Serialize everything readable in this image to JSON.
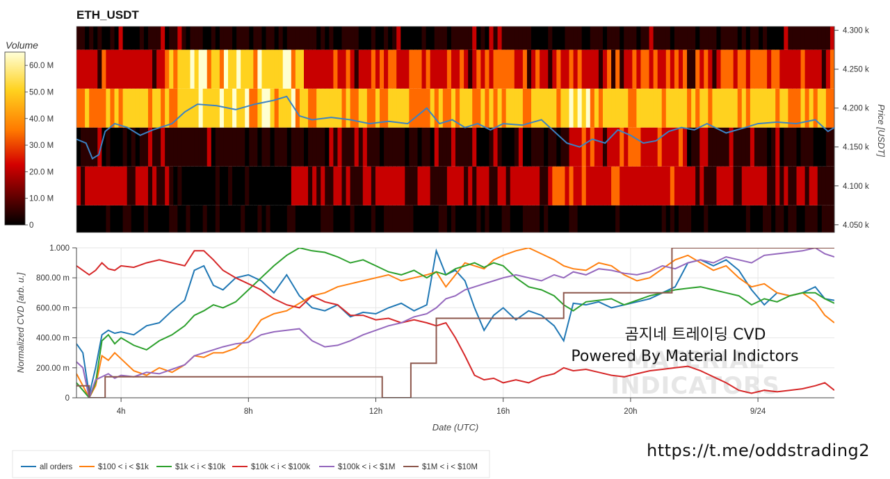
{
  "title": "ETH_USDT",
  "heatmap": {
    "colorbar": {
      "title": "Volume",
      "ticks": [
        "60.0 M",
        "50.0 M",
        "40.0 M",
        "30.0 M",
        "20.0 M",
        "10.0 M",
        "0"
      ],
      "range": [
        0,
        65
      ]
    },
    "y_axis": {
      "label": "Price [USDT]",
      "ticks": [
        "4.300 k",
        "4.250 k",
        "4.200 k",
        "4.150 k",
        "4.100 k",
        "4.050 k"
      ],
      "range": [
        4.04,
        4.305
      ]
    },
    "band_colors": [
      "#000000",
      "#2b0000",
      "#c80000",
      "#ff6a00",
      "#ffd21f",
      "#ffffd0"
    ]
  },
  "cvd": {
    "y_axis": {
      "label": "Normalized CVD [arb. u.]",
      "ticks": [
        "1.000",
        "800.00 m",
        "600.00 m",
        "400.00 m",
        "200.00 m",
        "0"
      ],
      "range": [
        0,
        1
      ]
    },
    "x_axis": {
      "label": "Date (UTC)",
      "ticks": [
        "4h",
        "8h",
        "12h",
        "16h",
        "20h",
        "9/24"
      ],
      "range_hours": [
        2.6,
        26.4
      ]
    }
  },
  "watermark": [
    "MATERIAL",
    "INDICATORS"
  ],
  "annotation": {
    "line1": "곰지네 트레이딩 CVD",
    "line2": "Powered By Material Indictors"
  },
  "link": "https://t.me/oddstrading2",
  "legend": [
    {
      "name": "all orders",
      "color": "#1f77b4"
    },
    {
      "name": "$100 < i < $1k",
      "color": "#ff7f0e"
    },
    {
      "name": "$1k < i < $10k",
      "color": "#2ca02c"
    },
    {
      "name": "$10k < i < $100k",
      "color": "#d62728"
    },
    {
      "name": "$100k < i < $1M",
      "color": "#9467bd"
    },
    {
      "name": "$1M < i < $10M",
      "color": "#8c564b"
    }
  ],
  "chart_data": [
    {
      "type": "heatmap",
      "title": "ETH_USDT",
      "ylabel": "Price [USDT]",
      "ylim": [
        4.04,
        4.305
      ],
      "price_bands": [
        4.05,
        4.1,
        4.15,
        4.2,
        4.25,
        4.3
      ],
      "x_range_hours": [
        2.6,
        26.4
      ],
      "price_line": {
        "x": [
          2.6,
          2.9,
          3.1,
          3.3,
          3.5,
          3.8,
          4.2,
          4.6,
          5.0,
          5.6,
          6.0,
          6.4,
          7.0,
          7.6,
          8.2,
          8.8,
          9.2,
          9.6,
          10.0,
          10.6,
          11.2,
          11.8,
          12.4,
          13.0,
          13.6,
          14.0,
          14.4,
          14.8,
          15.2,
          15.6,
          16.0,
          16.6,
          17.2,
          17.6,
          18.0,
          18.4,
          18.8,
          19.2,
          19.6,
          20.0,
          20.4,
          20.8,
          21.2,
          21.6,
          22.0,
          22.4,
          23.0,
          23.6,
          24.0,
          24.6,
          25.2,
          25.8,
          26.2,
          26.4
        ],
        "y": [
          4.16,
          4.155,
          4.135,
          4.14,
          4.17,
          4.18,
          4.175,
          4.165,
          4.172,
          4.18,
          4.195,
          4.205,
          4.203,
          4.198,
          4.205,
          4.21,
          4.215,
          4.19,
          4.185,
          4.188,
          4.185,
          4.18,
          4.183,
          4.18,
          4.2,
          4.18,
          4.185,
          4.175,
          4.18,
          4.172,
          4.18,
          4.178,
          4.185,
          4.17,
          4.155,
          4.15,
          4.16,
          4.155,
          4.172,
          4.165,
          4.155,
          4.158,
          4.17,
          4.175,
          4.172,
          4.18,
          4.168,
          4.175,
          4.18,
          4.182,
          4.18,
          4.185,
          4.17,
          4.175
        ]
      }
    },
    {
      "type": "line",
      "xlabel": "Date (UTC)",
      "ylabel": "Normalized CVD [arb. u.]",
      "ylim": [
        0,
        1
      ],
      "x": [
        2.6,
        2.8,
        3.0,
        3.2,
        3.4,
        3.6,
        3.8,
        4.0,
        4.4,
        4.8,
        5.2,
        5.6,
        6.0,
        6.3,
        6.6,
        6.9,
        7.2,
        7.6,
        8.0,
        8.4,
        8.8,
        9.2,
        9.6,
        10.0,
        10.4,
        10.8,
        11.2,
        11.6,
        12.0,
        12.4,
        12.8,
        13.2,
        13.6,
        13.9,
        14.2,
        14.5,
        14.8,
        15.1,
        15.4,
        15.7,
        16.0,
        16.4,
        16.8,
        17.2,
        17.6,
        17.9,
        18.2,
        18.6,
        19.0,
        19.4,
        19.8,
        20.2,
        20.6,
        21.0,
        21.4,
        21.8,
        22.2,
        22.6,
        23.0,
        23.4,
        23.8,
        24.2,
        24.6,
        25.0,
        25.4,
        25.8,
        26.1,
        26.4
      ],
      "series": [
        {
          "name": "all orders",
          "values": [
            0.36,
            0.3,
            0.02,
            0.2,
            0.42,
            0.45,
            0.43,
            0.44,
            0.42,
            0.48,
            0.5,
            0.58,
            0.65,
            0.85,
            0.88,
            0.75,
            0.72,
            0.8,
            0.82,
            0.78,
            0.7,
            0.82,
            0.68,
            0.6,
            0.58,
            0.62,
            0.54,
            0.57,
            0.56,
            0.6,
            0.63,
            0.58,
            0.62,
            0.98,
            0.82,
            0.85,
            0.78,
            0.6,
            0.45,
            0.55,
            0.6,
            0.52,
            0.58,
            0.55,
            0.48,
            0.38,
            0.63,
            0.62,
            0.64,
            0.6,
            0.62,
            0.64,
            0.66,
            0.7,
            0.74,
            0.9,
            0.92,
            0.88,
            0.92,
            0.85,
            0.72,
            0.62,
            0.7,
            0.68,
            0.7,
            0.74,
            0.66,
            0.65
          ]
        },
        {
          "name": "$100 < i < $1k",
          "values": [
            0.16,
            0.08,
            0.0,
            0.08,
            0.28,
            0.25,
            0.3,
            0.26,
            0.18,
            0.15,
            0.2,
            0.17,
            0.22,
            0.28,
            0.27,
            0.3,
            0.3,
            0.33,
            0.4,
            0.52,
            0.56,
            0.58,
            0.63,
            0.68,
            0.7,
            0.74,
            0.76,
            0.78,
            0.8,
            0.82,
            0.78,
            0.8,
            0.82,
            0.84,
            0.74,
            0.82,
            0.9,
            0.88,
            0.86,
            0.92,
            0.95,
            0.98,
            1.0,
            0.96,
            0.92,
            0.88,
            0.86,
            0.85,
            0.9,
            0.88,
            0.82,
            0.78,
            0.8,
            0.86,
            0.92,
            0.95,
            0.9,
            0.85,
            0.88,
            0.8,
            0.74,
            0.76,
            0.7,
            0.68,
            0.7,
            0.64,
            0.55,
            0.5
          ]
        },
        {
          "name": "$1k < i < $10k",
          "values": [
            0.1,
            0.05,
            0.0,
            0.1,
            0.38,
            0.42,
            0.36,
            0.4,
            0.35,
            0.32,
            0.38,
            0.42,
            0.48,
            0.55,
            0.58,
            0.62,
            0.6,
            0.64,
            0.72,
            0.8,
            0.88,
            0.95,
            1.0,
            0.98,
            0.97,
            0.94,
            0.9,
            0.92,
            0.88,
            0.84,
            0.82,
            0.85,
            0.8,
            0.84,
            0.82,
            0.86,
            0.88,
            0.9,
            0.87,
            0.9,
            0.88,
            0.8,
            0.74,
            0.72,
            0.68,
            0.62,
            0.58,
            0.64,
            0.65,
            0.66,
            0.62,
            0.65,
            0.68,
            0.7,
            0.72,
            0.73,
            0.74,
            0.72,
            0.7,
            0.68,
            0.62,
            0.66,
            0.64,
            0.68,
            0.7,
            0.7,
            0.66,
            0.63
          ]
        },
        {
          "name": "$10k < i < $100k",
          "values": [
            0.88,
            0.85,
            0.82,
            0.85,
            0.9,
            0.86,
            0.85,
            0.88,
            0.87,
            0.9,
            0.92,
            0.9,
            0.88,
            0.98,
            0.98,
            0.92,
            0.85,
            0.8,
            0.76,
            0.72,
            0.66,
            0.62,
            0.6,
            0.68,
            0.64,
            0.62,
            0.55,
            0.55,
            0.52,
            0.53,
            0.5,
            0.52,
            0.5,
            0.48,
            0.5,
            0.4,
            0.28,
            0.15,
            0.12,
            0.13,
            0.1,
            0.12,
            0.1,
            0.14,
            0.16,
            0.2,
            0.18,
            0.19,
            0.17,
            0.15,
            0.14,
            0.16,
            0.18,
            0.19,
            0.2,
            0.21,
            0.18,
            0.14,
            0.1,
            0.05,
            0.03,
            0.05,
            0.04,
            0.05,
            0.06,
            0.08,
            0.1,
            0.05
          ]
        },
        {
          "name": "$100k < i < $1M",
          "values": [
            0.24,
            0.2,
            0.0,
            0.12,
            0.14,
            0.16,
            0.13,
            0.15,
            0.14,
            0.17,
            0.16,
            0.19,
            0.22,
            0.28,
            0.3,
            0.32,
            0.34,
            0.36,
            0.37,
            0.42,
            0.44,
            0.45,
            0.46,
            0.38,
            0.34,
            0.35,
            0.38,
            0.42,
            0.45,
            0.48,
            0.5,
            0.54,
            0.56,
            0.6,
            0.66,
            0.68,
            0.72,
            0.74,
            0.76,
            0.78,
            0.8,
            0.82,
            0.8,
            0.78,
            0.82,
            0.8,
            0.84,
            0.82,
            0.86,
            0.85,
            0.83,
            0.82,
            0.84,
            0.88,
            0.86,
            0.9,
            0.92,
            0.9,
            0.94,
            0.92,
            0.9,
            0.95,
            0.96,
            0.97,
            0.98,
            1.0,
            0.96,
            0.94
          ]
        }
      ],
      "step_series": {
        "name": "$1M < i < $10M",
        "x": [
          2.6,
          3.0,
          3.5,
          12.2,
          13.1,
          13.9,
          17.9,
          21.3,
          26.4
        ],
        "values": [
          0.08,
          0.0,
          0.14,
          0.0,
          0.23,
          0.53,
          0.7,
          1.0,
          1.0
        ]
      }
    }
  ]
}
